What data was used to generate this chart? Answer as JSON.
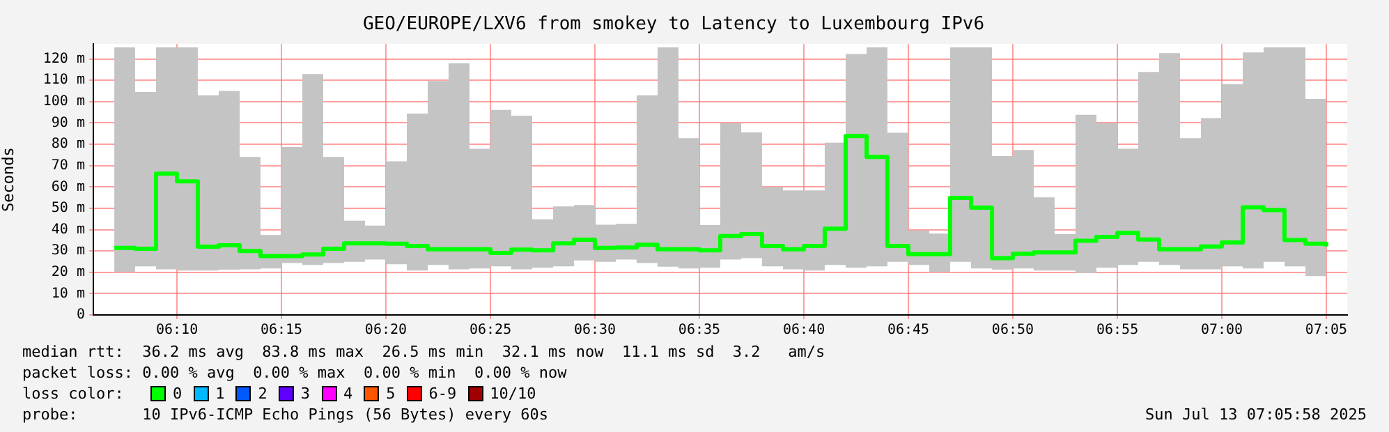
{
  "chart_data": {
    "type": "step",
    "title": "GEO/EUROPE/LXV6 from smokey to Latency to Luxembourg IPv6",
    "ylabel": "Seconds",
    "xlim": [
      6.1,
      7.1
    ],
    "xticks": [
      {
        "value": 6.1667,
        "label": "06:10"
      },
      {
        "value": 6.25,
        "label": "06:15"
      },
      {
        "value": 6.3333,
        "label": "06:20"
      },
      {
        "value": 6.4167,
        "label": "06:25"
      },
      {
        "value": 6.5,
        "label": "06:30"
      },
      {
        "value": 6.5833,
        "label": "06:35"
      },
      {
        "value": 6.6667,
        "label": "06:40"
      },
      {
        "value": 6.75,
        "label": "06:45"
      },
      {
        "value": 6.8333,
        "label": "06:50"
      },
      {
        "value": 6.9167,
        "label": "06:55"
      },
      {
        "value": 7.0,
        "label": "07:00"
      },
      {
        "value": 7.0833,
        "label": "07:05"
      }
    ],
    "ylim": [
      0,
      127
    ],
    "yticks": [
      {
        "value": 0,
        "label": "0"
      },
      {
        "value": 10,
        "label": "10 m"
      },
      {
        "value": 20,
        "label": "20 m"
      },
      {
        "value": 30,
        "label": "30 m"
      },
      {
        "value": 40,
        "label": "40 m"
      },
      {
        "value": 50,
        "label": "50 m"
      },
      {
        "value": 60,
        "label": "60 m"
      },
      {
        "value": 70,
        "label": "70 m"
      },
      {
        "value": 80,
        "label": "80 m"
      },
      {
        "value": 90,
        "label": "90 m"
      },
      {
        "value": 100,
        "label": "100 m"
      },
      {
        "value": 110,
        "label": "110 m"
      },
      {
        "value": 120,
        "label": "120 m"
      }
    ],
    "grid": true,
    "line_style": "solid",
    "marker": "none",
    "x": [
      6.1167,
      6.1333,
      6.15,
      6.1667,
      6.1833,
      6.2,
      6.2167,
      6.2333,
      6.25,
      6.2667,
      6.2833,
      6.3,
      6.3167,
      6.3333,
      6.35,
      6.3667,
      6.3833,
      6.4,
      6.4167,
      6.4333,
      6.45,
      6.4667,
      6.4833,
      6.5,
      6.5167,
      6.5333,
      6.55,
      6.5667,
      6.5833,
      6.6,
      6.6167,
      6.6333,
      6.65,
      6.6667,
      6.6833,
      6.7,
      6.7167,
      6.7333,
      6.75,
      6.7667,
      6.7833,
      6.8,
      6.8167,
      6.8333,
      6.85,
      6.8667,
      6.8833,
      6.9,
      6.9167,
      6.9333,
      6.95,
      6.9667,
      6.9833,
      7.0,
      7.0167,
      7.0333,
      7.05,
      7.0667,
      7.0833
    ],
    "series": [
      {
        "color": "#00ff00",
        "values": [
          31.4,
          31,
          66.2,
          62.6,
          32,
          32.7,
          30,
          27.6,
          27.6,
          28.3,
          31,
          33.6,
          33.6,
          33.4,
          32.3,
          30.8,
          30.8,
          30.8,
          29.1,
          30.6,
          30.3,
          33.6,
          35.3,
          31.4,
          31.6,
          32.9,
          30.8,
          30.8,
          30.3,
          37,
          37.9,
          32.3,
          30.8,
          32.3,
          40.4,
          83.9,
          74.1,
          32.3,
          28.5,
          28.5,
          54.9,
          50.3,
          26.6,
          28.7,
          29.3,
          29.3,
          34.8,
          36.6,
          38.5,
          35.4,
          30.8,
          30.8,
          32.1,
          34,
          50.5,
          49.2,
          35.1,
          33.4,
          32.1
        ],
        "lower": [
          20.2,
          22.8,
          21.4,
          20.8,
          20.8,
          21.2,
          21.4,
          21.8,
          24.3,
          23.4,
          24.3,
          24.9,
          26,
          23.8,
          20.8,
          23.4,
          21.4,
          21.8,
          22.8,
          21.4,
          22.1,
          22.8,
          25.6,
          24.9,
          26,
          24.3,
          22.6,
          21.8,
          22.1,
          26,
          26.6,
          22.8,
          21.4,
          20.8,
          23.4,
          22.1,
          22.8,
          24.9,
          23.4,
          20.2,
          24.9,
          21.8,
          21.2,
          21.8,
          20.8,
          20.8,
          19.7,
          22.1,
          23.4,
          24.9,
          23.4,
          21.4,
          21.4,
          22.8,
          21.8,
          24.9,
          22.8,
          18.2,
          22.1
        ],
        "upper": [
          125.4,
          104.5,
          125.4,
          125.4,
          103,
          105,
          74.1,
          37.5,
          78.7,
          112.9,
          74.1,
          44.2,
          41.9,
          72,
          94.4,
          109.7,
          118,
          77.9,
          96.1,
          93.4,
          44.8,
          50.9,
          51.5,
          42.3,
          42.7,
          103,
          125.4,
          82.9,
          42.1,
          89.8,
          85.6,
          59.9,
          58.4,
          58.4,
          80.8,
          122.3,
          125.4,
          85.4,
          39.6,
          38.1,
          125.4,
          125.4,
          74.5,
          77.3,
          55.1,
          37.9,
          93.8,
          89.8,
          77.9,
          113.9,
          122.7,
          82.9,
          92.3,
          108.2,
          123.1,
          125.4,
          125.4,
          101.3,
          111.2
        ]
      }
    ],
    "annotations": [
      "median rtt:  36.2 ms avg  83.8 ms max  26.5 ms min  32.1 ms now  11.1 ms sd  3.2   am/s",
      "packet loss: 0.00 % avg  0.00 % max  0.00 % min  0.00 % now",
      "loss color:",
      "0",
      "1",
      "2",
      "3",
      "4",
      "5",
      "6-9",
      "10/10",
      "probe:       10 IPv6-ICMP Echo Pings (56 Bytes) every 60s",
      "Sun Jul 13 07:05:58 2025"
    ]
  }
}
